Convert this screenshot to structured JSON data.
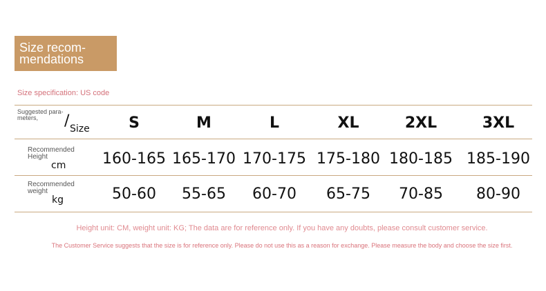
{
  "title": "Size recom- mendations",
  "title_lines": [
    "Size recom-",
    "mendations"
  ],
  "spec": "Size specification: US code",
  "header": {
    "label_lines": [
      "Suggested para-",
      "meters,"
    ],
    "slash": "/",
    "size_word": "Size",
    "sizes": [
      "S",
      "M",
      "L",
      "XL",
      "2XL",
      "3XL"
    ]
  },
  "rows": [
    {
      "label_lines": [
        "Recommended",
        "Height"
      ],
      "unit": "cm",
      "values": [
        "160-165",
        "165-170",
        "170-175",
        "175-180",
        "180-185",
        "185-190"
      ]
    },
    {
      "label_lines": [
        "Recommended",
        "weight"
      ],
      "unit": "kg",
      "values": [
        "50-60",
        "55-65",
        "60-70",
        "65-75",
        "70-85",
        "80-90"
      ]
    }
  ],
  "note1": "Height unit: CM, weight unit: KG; The data are for reference only. If you have any doubts, please consult customer service.",
  "note2": "The Customer Service suggests that the size is for reference only. Please do not use this as a reason for exchange. Please measure the body and choose the size first.",
  "colors": {
    "title_bg": "#c99a66",
    "accent_text": "#d4717a",
    "divider": "#c9a880"
  }
}
